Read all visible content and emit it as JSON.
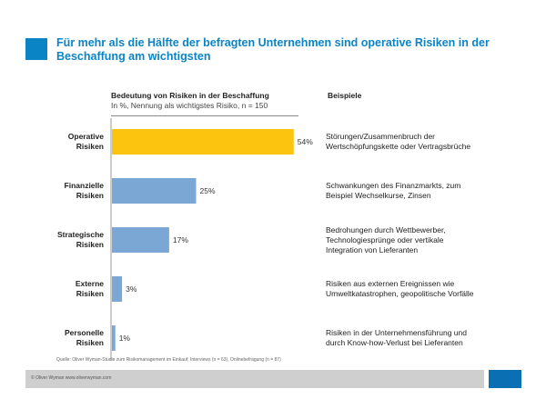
{
  "title": "Für mehr als die Hälfte der befragten Unternehmen sind operative Risiken in der Beschaffung am wichtigsten",
  "chart_header": {
    "line1": "Bedeutung von Risiken in der Beschaffung",
    "line2": "In %, Nennung als wichtigstes Risiko, n = 150"
  },
  "examples_header": "Beispiele",
  "chart_data": {
    "type": "bar",
    "orientation": "horizontal",
    "title": "Bedeutung von Risiken in der Beschaffung",
    "subtitle": "In %, Nennung als wichtigstes Risiko, n = 150",
    "categories": [
      [
        "Operative",
        "Risiken"
      ],
      [
        "Finanzielle",
        "Risiken"
      ],
      [
        "Strategische",
        "Risiken"
      ],
      [
        "Externe",
        "Risiken"
      ],
      [
        "Personelle",
        "Risiken"
      ]
    ],
    "values": [
      54,
      25,
      17,
      3,
      1
    ],
    "value_labels": [
      "54%",
      "25%",
      "17%",
      "3%",
      "1%"
    ],
    "highlight_index": 0,
    "xlim": [
      0,
      60
    ],
    "colors": {
      "highlight": "#fcc40f",
      "default": "#7ba7d4"
    }
  },
  "examples": [
    [
      "Störungen/Zusammenbruch der",
      "Wertschöpfungskette oder Vertragsbrüche"
    ],
    [
      "Schwankungen des Finanzmarkts, zum",
      "Beispiel Wechselkurse, Zinsen"
    ],
    [
      "Bedrohungen durch Wettbewerber,",
      "Technologiesprünge oder vertikale",
      "Integration von Lieferanten"
    ],
    [
      "Risiken aus externen Ereignissen wie",
      "Umweltkatastrophen, geopolitische Vorfälle"
    ],
    [
      "Risiken in der Unternehmensführung und",
      "durch Know-how-Verlust bei Lieferanten"
    ]
  ],
  "source": "Quelle: Oliver Wyman-Studie zum Risikomanagement im Einkauf; Interviews (n = 63), Onlinebefragung (n = 87)",
  "footer": "© Oliver Wyman    www.oliverwyman.com",
  "colors": {
    "accent": "#0b84c6",
    "footer_bar": "#cfcfcf",
    "footer_square": "#0b6fb3"
  }
}
